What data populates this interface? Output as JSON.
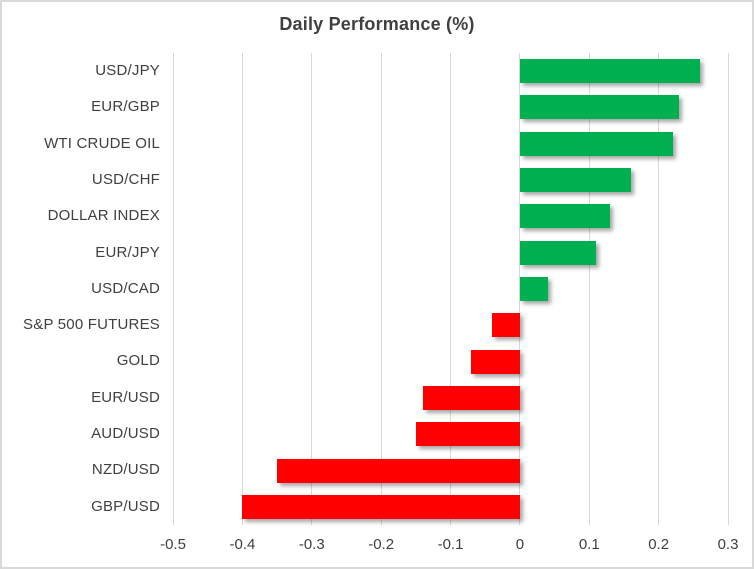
{
  "chart_data": {
    "type": "bar",
    "orientation": "horizontal",
    "title": "Daily Performance (%)",
    "categories": [
      "USD/JPY",
      "EUR/GBP",
      "WTI CRUDE OIL",
      "USD/CHF",
      "DOLLAR INDEX",
      "EUR/JPY",
      "USD/CAD",
      "S&P 500 FUTURES",
      "GOLD",
      "EUR/USD",
      "AUD/USD",
      "NZD/USD",
      "GBP/USD"
    ],
    "values": [
      0.26,
      0.23,
      0.22,
      0.16,
      0.13,
      0.11,
      0.04,
      -0.04,
      -0.07,
      -0.14,
      -0.15,
      -0.35,
      -0.4
    ],
    "xlabel": "",
    "ylabel": "",
    "xlim": [
      -0.5,
      0.3
    ],
    "x_ticks": [
      -0.5,
      -0.4,
      -0.3,
      -0.2,
      -0.1,
      0,
      0.1,
      0.2,
      0.3
    ],
    "x_tick_labels": [
      "-0.5",
      "-0.4",
      "-0.3",
      "-0.2",
      "-0.1",
      "0",
      "0.1",
      "0.2",
      "0.3"
    ],
    "grid": true,
    "legend": "none",
    "colors": {
      "positive": "#00B050",
      "negative": "#FF0000",
      "gridline": "#D9D9D9",
      "border": "#D9D9D9",
      "text": "#404040",
      "background": "#FFFFFF"
    }
  }
}
